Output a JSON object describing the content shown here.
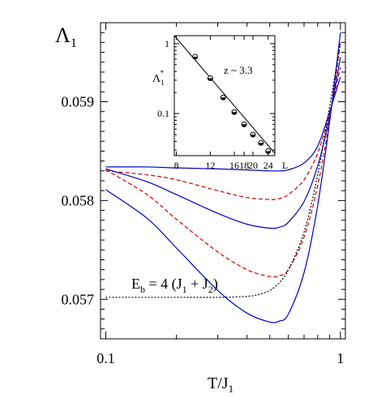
{
  "chart_data": {
    "type": "line",
    "ylabel": "Λ",
    "ylabel_sub": "1",
    "xlabel": "T/J",
    "xlabel_sub": "1",
    "xscale": "log",
    "xlim": [
      0.095,
      1.05
    ],
    "ylim": [
      0.0566,
      0.0598
    ],
    "x_ticks": [
      0.1,
      1
    ],
    "x_tick_labels": [
      "0.1",
      "1"
    ],
    "y_ticks": [
      0.057,
      0.058,
      0.059
    ],
    "y_tick_labels": [
      "0.057",
      "0.058",
      "0.059"
    ],
    "grid": false,
    "annotation": {
      "text_main": "E",
      "text_sub": "b",
      "text_mid": " = 4 (J",
      "text_sub2": "1",
      "text_mid2": " + J",
      "text_sub3": "2",
      "text_end": ")"
    },
    "series": [
      {
        "color": "#0000cc",
        "style": "solid",
        "x": [
          0.1,
          0.15,
          0.2,
          0.3,
          0.4,
          0.5,
          0.55,
          0.6,
          0.7,
          0.8,
          0.9,
          1.0
        ],
        "y": [
          0.05834,
          0.05834,
          0.05833,
          0.05832,
          0.05831,
          0.0583,
          0.0583,
          0.05831,
          0.05838,
          0.05855,
          0.0589,
          0.05925
        ]
      },
      {
        "color": "#cc0000",
        "style": "dashed",
        "x": [
          0.1,
          0.15,
          0.2,
          0.3,
          0.4,
          0.5,
          0.55,
          0.6,
          0.7,
          0.8,
          0.9,
          1.0
        ],
        "y": [
          0.0583,
          0.05826,
          0.05821,
          0.0581,
          0.05803,
          0.05801,
          0.05802,
          0.05806,
          0.05821,
          0.05848,
          0.05888,
          0.05935
        ]
      },
      {
        "color": "#0000cc",
        "style": "solid",
        "x": [
          0.1,
          0.15,
          0.2,
          0.3,
          0.4,
          0.5,
          0.55,
          0.6,
          0.7,
          0.8,
          0.9,
          1.0
        ],
        "y": [
          0.05832,
          0.05819,
          0.05806,
          0.05787,
          0.05776,
          0.05772,
          0.05773,
          0.05778,
          0.05799,
          0.05835,
          0.05885,
          0.05945
        ]
      },
      {
        "color": "#cc0000",
        "style": "dashed",
        "x": [
          0.1,
          0.15,
          0.2,
          0.3,
          0.4,
          0.5,
          0.55,
          0.6,
          0.7,
          0.8,
          0.9,
          1.0
        ],
        "y": [
          0.05831,
          0.05806,
          0.05781,
          0.05748,
          0.0573,
          0.05723,
          0.05724,
          0.0573,
          0.05763,
          0.05815,
          0.05882,
          0.0596
        ]
      },
      {
        "color": "#0000cc",
        "style": "solid",
        "x": [
          0.1,
          0.15,
          0.2,
          0.3,
          0.4,
          0.5,
          0.55,
          0.6,
          0.7,
          0.8,
          0.9,
          1.0
        ],
        "y": [
          0.05811,
          0.05782,
          0.05752,
          0.05709,
          0.05686,
          0.05677,
          0.05678,
          0.05685,
          0.05727,
          0.05795,
          0.0588,
          0.0597
        ]
      },
      {
        "color": "#000000",
        "style": "dotted",
        "x": [
          0.1,
          0.2,
          0.3,
          0.4,
          0.45,
          0.5,
          0.55,
          0.6,
          0.7,
          0.8,
          0.9,
          1.0
        ],
        "y": [
          0.05702,
          0.05702,
          0.05702,
          0.05703,
          0.05705,
          0.05709,
          0.05717,
          0.0573,
          0.05768,
          0.05826,
          0.05895,
          0.0596
        ]
      }
    ],
    "inset": {
      "type": "scatter",
      "ylabel": "Λ",
      "ylabel_sub": "1",
      "ylabel_sup": "*",
      "xlabel": "L",
      "xscale": "log",
      "yscale": "log",
      "xlim": [
        7.8,
        26
      ],
      "ylim": [
        0.025,
        1.3
      ],
      "x_ticks": [
        8,
        12,
        16,
        18,
        20,
        24
      ],
      "x_tick_labels": [
        "8",
        "12",
        "16",
        "18",
        "20",
        "24"
      ],
      "y_ticks": [
        1,
        0.1
      ],
      "y_tick_labels": [
        "1",
        "0.1"
      ],
      "annotation": "z ~ 3.3",
      "fit_line": {
        "x": [
          7.8,
          26
        ],
        "y": [
          1.5,
          0.027
        ]
      },
      "points": {
        "x": [
          10,
          12,
          14,
          16,
          18,
          20,
          22,
          24
        ],
        "y": [
          0.65,
          0.32,
          0.17,
          0.105,
          0.07,
          0.05,
          0.038,
          0.029
        ]
      }
    }
  }
}
